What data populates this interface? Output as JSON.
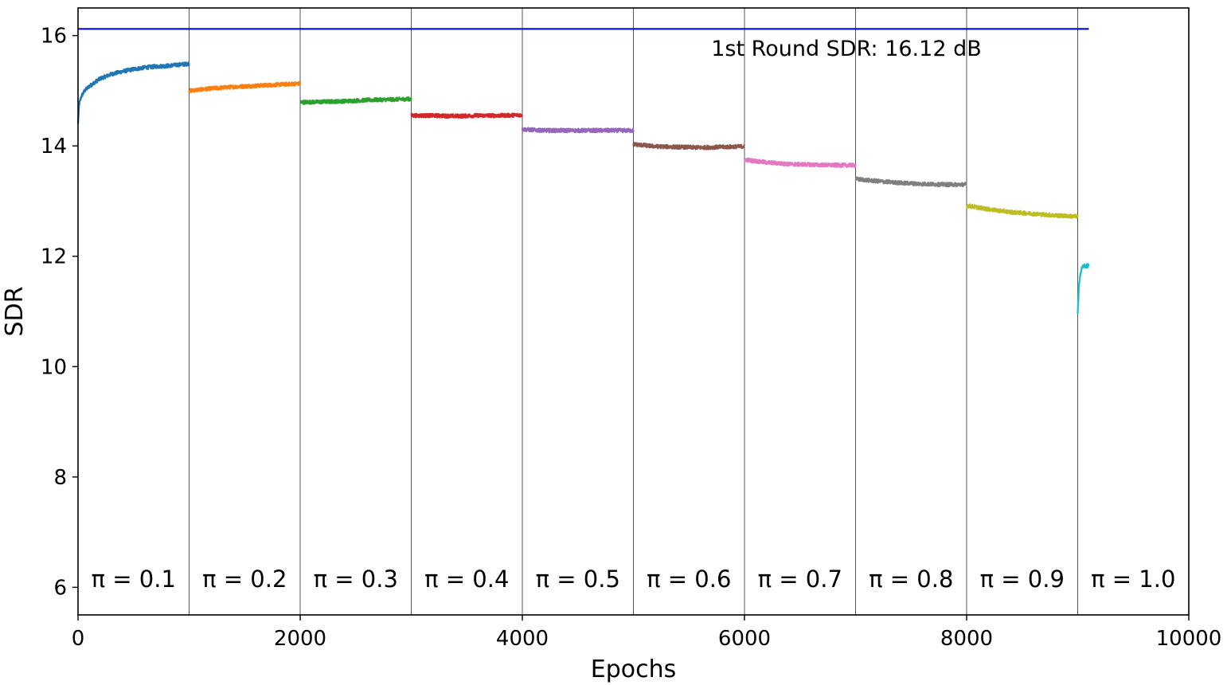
{
  "chart_data": {
    "type": "line",
    "xlabel": "Epochs",
    "ylabel": "SDR",
    "xlim": [
      0,
      10000
    ],
    "ylim": [
      5.5,
      16.5
    ],
    "xticks": [
      "0",
      "2000",
      "4000",
      "6000",
      "8000",
      "10000"
    ],
    "yticks": [
      "6",
      "8",
      "10",
      "12",
      "14",
      "16"
    ],
    "grid": false,
    "reference_line": {
      "y": 16.12,
      "x_range": [
        0,
        9100
      ],
      "color": "#0000dd"
    },
    "annotation": "1st Round SDR: 16.12 dB",
    "stage_boundaries": [
      1000,
      2000,
      3000,
      4000,
      5000,
      6000,
      7000,
      8000,
      9000
    ],
    "stage_labels": [
      "π = 0.1",
      "π = 0.2",
      "π = 0.3",
      "π = 0.4",
      "π = 0.5",
      "π = 0.6",
      "π = 0.7",
      "π = 0.8",
      "π = 0.9",
      "π = 1.0"
    ],
    "series": [
      {
        "color": "#1f77b4",
        "x": [
          0,
          10,
          30,
          60,
          100,
          200,
          300,
          400,
          500,
          600,
          700,
          800,
          900,
          1000
        ],
        "y": [
          14.4,
          14.75,
          14.9,
          15.0,
          15.08,
          15.22,
          15.3,
          15.35,
          15.39,
          15.42,
          15.44,
          15.45,
          15.47,
          15.49
        ]
      },
      {
        "color": "#ff7f0e",
        "x": [
          1000,
          1200,
          1400,
          1600,
          1800,
          2000
        ],
        "y": [
          15.0,
          15.04,
          15.07,
          15.09,
          15.11,
          15.13
        ]
      },
      {
        "color": "#2ca02c",
        "x": [
          2000,
          2200,
          2400,
          2600,
          2800,
          3000
        ],
        "y": [
          14.79,
          14.8,
          14.81,
          14.83,
          14.84,
          14.85
        ]
      },
      {
        "color": "#d62728",
        "x": [
          3000,
          3200,
          3400,
          3600,
          3800,
          4000
        ],
        "y": [
          14.55,
          14.55,
          14.54,
          14.55,
          14.55,
          14.56
        ]
      },
      {
        "color": "#9467bd",
        "x": [
          4000,
          4200,
          4400,
          4600,
          4800,
          5000
        ],
        "y": [
          14.3,
          14.28,
          14.28,
          14.28,
          14.28,
          14.28
        ]
      },
      {
        "color": "#8c564b",
        "x": [
          5000,
          5200,
          5400,
          5600,
          5800,
          6000
        ],
        "y": [
          14.03,
          13.99,
          13.98,
          13.97,
          13.98,
          13.99
        ]
      },
      {
        "color": "#e377c2",
        "x": [
          6000,
          6200,
          6400,
          6600,
          6800,
          7000
        ],
        "y": [
          13.75,
          13.7,
          13.67,
          13.66,
          13.65,
          13.65
        ]
      },
      {
        "color": "#7f7f7f",
        "x": [
          7000,
          7200,
          7400,
          7600,
          7800,
          8000
        ],
        "y": [
          13.4,
          13.36,
          13.33,
          13.31,
          13.3,
          13.3
        ]
      },
      {
        "color": "#bcbd22",
        "x": [
          8000,
          8200,
          8400,
          8600,
          8800,
          9000
        ],
        "y": [
          12.92,
          12.85,
          12.8,
          12.77,
          12.74,
          12.72
        ]
      },
      {
        "color": "#17becf",
        "x": [
          9000,
          9010,
          9020,
          9040,
          9060,
          9080,
          9100
        ],
        "y": [
          10.95,
          11.4,
          11.65,
          11.8,
          11.83,
          11.82,
          11.84
        ]
      }
    ]
  }
}
